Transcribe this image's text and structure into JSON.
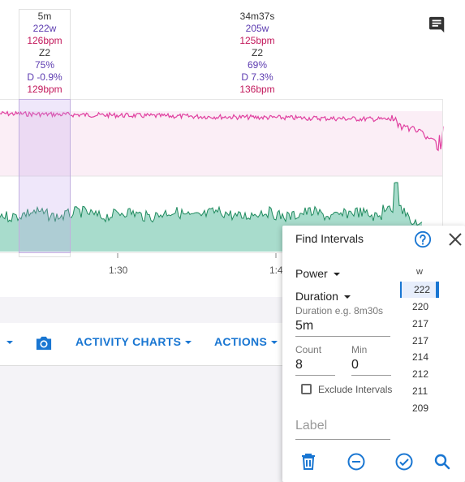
{
  "selection": {
    "duration": "5m",
    "power": "222w",
    "hr": "126bpm",
    "zone": "Z2",
    "pct": "75%",
    "decoupling": "D -0.9%",
    "max_hr": "129bpm"
  },
  "whole": {
    "duration": "34m37s",
    "power": "205w",
    "hr": "125bpm",
    "zone": "Z2",
    "pct": "69%",
    "decoupling": "D 7.3%",
    "max_hr": "136bpm"
  },
  "xaxis": {
    "tick1": "1:30",
    "tick2": "1:4"
  },
  "toolbar": {
    "activity_charts": "ACTIVITY CHARTS",
    "actions": "ACTIONS"
  },
  "panel": {
    "title": "Find Intervals",
    "metric": "Power",
    "mode": "Duration",
    "duration_hint": "Duration e.g. 8m30s",
    "duration_value": "5m",
    "count_label": "Count",
    "count_value": "8",
    "min_label": "Min",
    "min_value": "0",
    "exclude_label": "Exclude Intervals",
    "label_placeholder": "Label",
    "list_header": "w",
    "results": [
      "222",
      "220",
      "217",
      "217",
      "214",
      "212",
      "211",
      "209"
    ]
  },
  "colors": {
    "accent": "#1976d2",
    "hr_line": "#e040a0",
    "power_fill": "#a8dccc",
    "power_line": "#1f8a5e"
  },
  "icons": [
    "comment-icon",
    "camera-icon",
    "help-icon",
    "close-icon",
    "delete-icon",
    "remove-icon",
    "check-icon",
    "search-icon"
  ]
}
